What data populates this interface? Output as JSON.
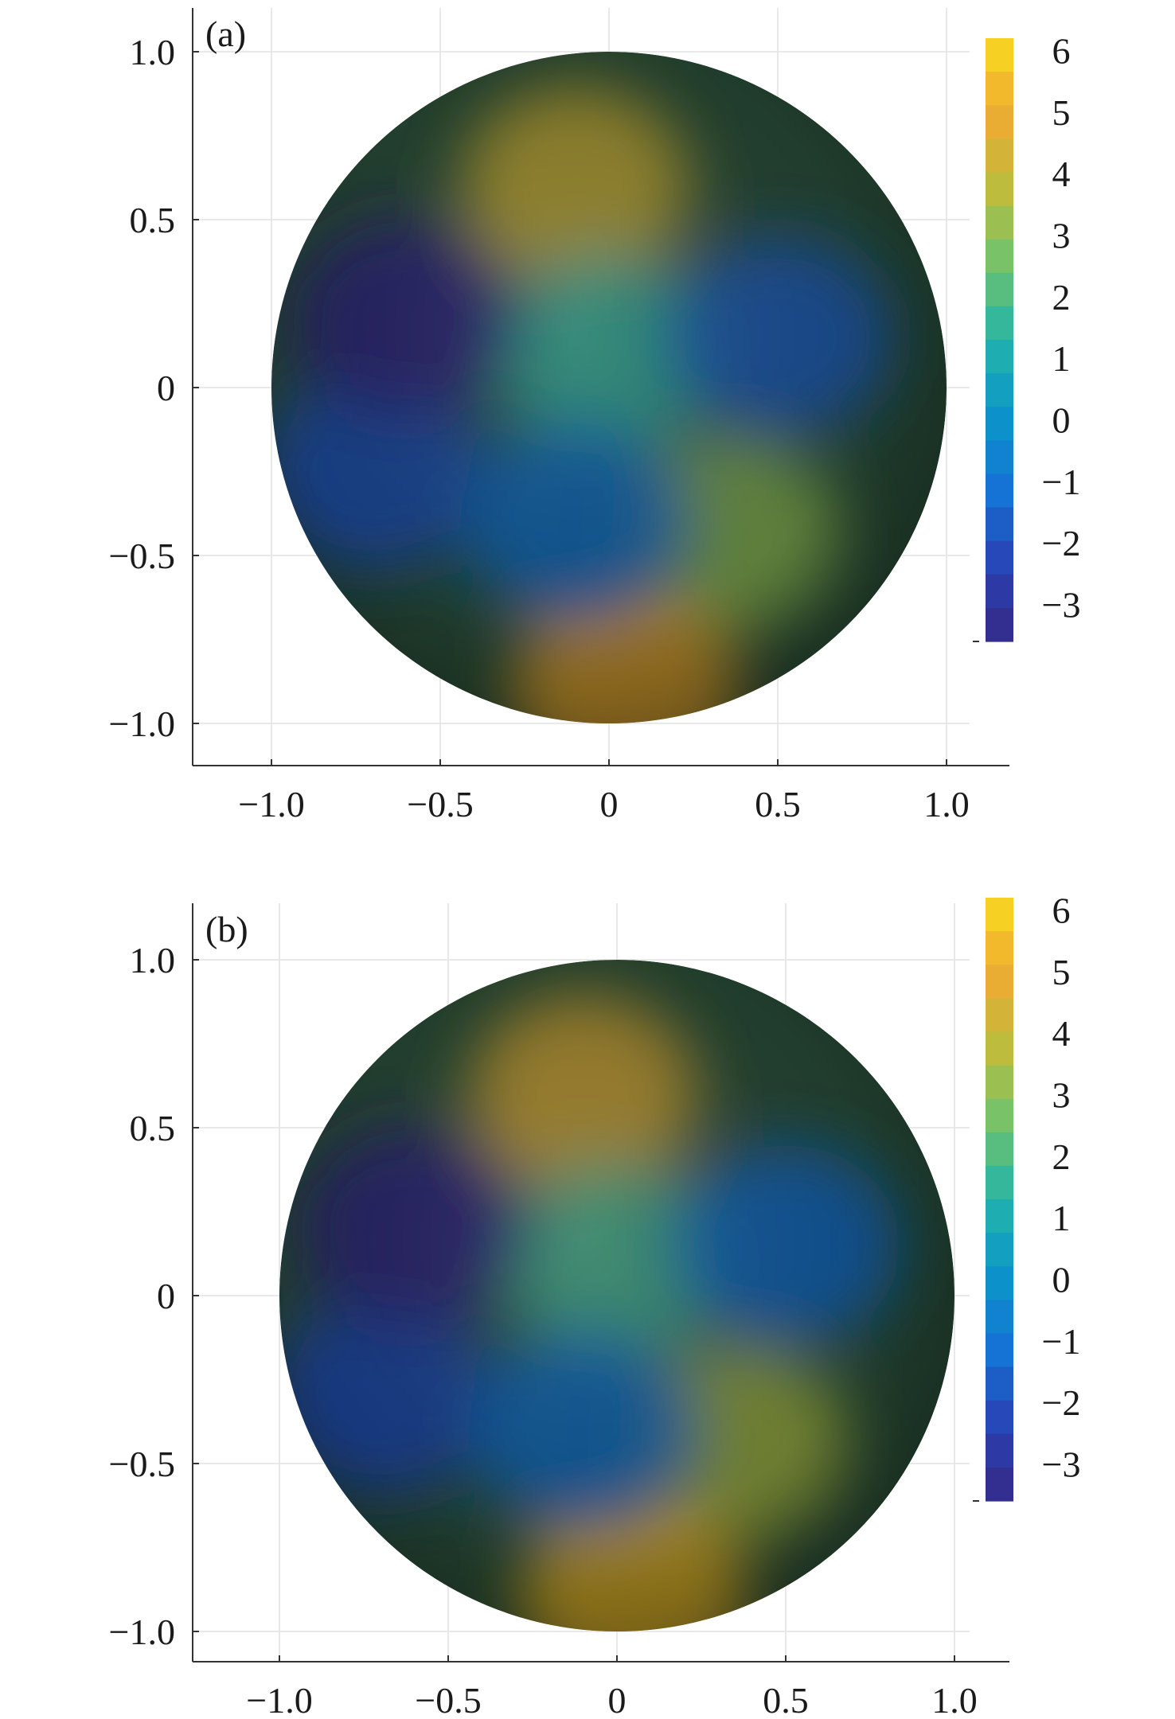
{
  "chart_data": [
    {
      "type": "heatmap",
      "panel_label": "(a)",
      "domain": "unit disk",
      "xticks": [
        "−1.0",
        "−0.5",
        "0",
        "0.5",
        "1.0"
      ],
      "yticks": [
        "1.0",
        "0.5",
        "0",
        "−0.5",
        "−1.0"
      ],
      "xtick_values": [
        -1.0,
        -0.5,
        0,
        0.5,
        1.0
      ],
      "ytick_values": [
        1.0,
        0.5,
        0,
        -0.5,
        -1.0
      ],
      "xlim": [
        -1.23,
        1.2
      ],
      "ylim": [
        -1.15,
        1.15
      ],
      "grid": true,
      "colorbar": {
        "ticks": [
          "6",
          "5",
          "4",
          "3",
          "2",
          "1",
          "0",
          "−1",
          "−2",
          "−3"
        ],
        "tick_values": [
          6,
          5,
          4,
          3,
          2,
          1,
          0,
          -1,
          -2,
          -3
        ],
        "range": [
          -3.6,
          6.2
        ],
        "levels": 18
      },
      "features": [
        {
          "x": -0.1,
          "y": 0.6,
          "value": 4.2
        },
        {
          "x": 0.0,
          "y": 0.1,
          "value": 1.5
        },
        {
          "x": 0.5,
          "y": 0.15,
          "value": -1.5
        },
        {
          "x": 0.35,
          "y": -0.45,
          "value": 3.0
        },
        {
          "x": 0.05,
          "y": -0.9,
          "value": 5.2
        },
        {
          "x": -0.7,
          "y": -0.25,
          "value": -1.8
        },
        {
          "x": -0.6,
          "y": 0.2,
          "value": -3.5
        },
        {
          "x": -0.1,
          "y": -0.4,
          "value": -1.0
        }
      ]
    },
    {
      "type": "heatmap",
      "panel_label": "(b)",
      "domain": "unit disk",
      "xticks": [
        "−1.0",
        "−0.5",
        "0",
        "0.5",
        "1.0"
      ],
      "yticks": [
        "1.0",
        "0.5",
        "0",
        "−0.5",
        "−1.0"
      ],
      "xtick_values": [
        -1.0,
        -0.5,
        0,
        0.5,
        1.0
      ],
      "ytick_values": [
        1.0,
        0.5,
        0,
        -0.5,
        -1.0
      ],
      "xlim": [
        -1.23,
        1.2
      ],
      "ylim": [
        -1.1,
        1.15
      ],
      "grid": true,
      "colorbar": {
        "ticks": [
          "6",
          "5",
          "4",
          "3",
          "2",
          "1",
          "0",
          "−1",
          "−2",
          "−3"
        ],
        "tick_values": [
          6,
          5,
          4,
          3,
          2,
          1,
          0,
          -1,
          -2,
          -3
        ],
        "range": [
          -3.6,
          6.2
        ],
        "levels": 18
      },
      "features": [
        {
          "x": -0.1,
          "y": 0.6,
          "value": 4.5
        },
        {
          "x": 0.0,
          "y": 0.1,
          "value": 1.8
        },
        {
          "x": 0.5,
          "y": 0.15,
          "value": -1.2
        },
        {
          "x": 0.35,
          "y": -0.45,
          "value": 3.4
        },
        {
          "x": 0.05,
          "y": -0.9,
          "value": 5.6
        },
        {
          "x": -0.7,
          "y": -0.3,
          "value": -2.0
        },
        {
          "x": -0.6,
          "y": 0.2,
          "value": -3.5
        },
        {
          "x": -0.1,
          "y": -0.4,
          "value": -1.0
        }
      ]
    }
  ]
}
